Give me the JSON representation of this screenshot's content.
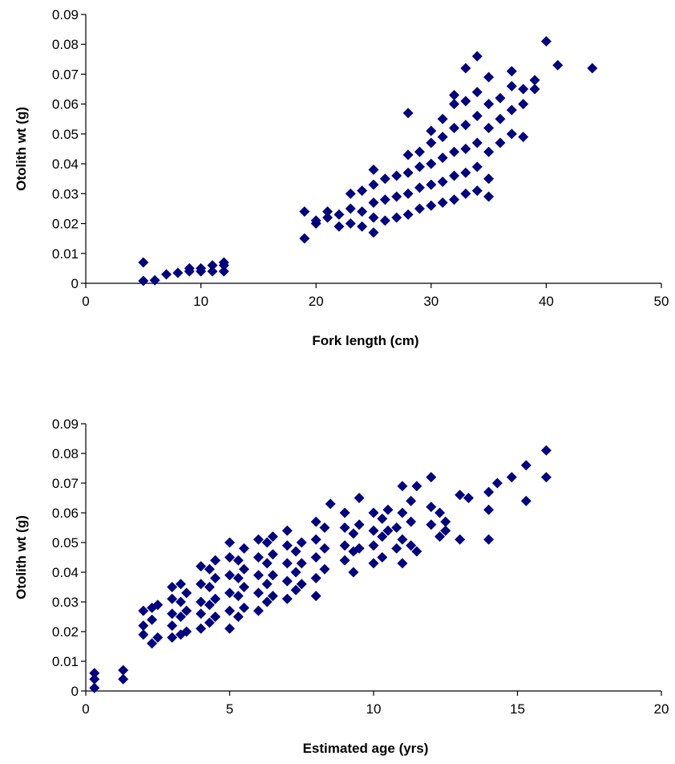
{
  "chart_data": [
    {
      "type": "scatter",
      "xlabel": "Fork length (cm)",
      "ylabel": "Otolith wt (g)",
      "xlim": [
        0,
        50
      ],
      "ylim": [
        0,
        0.09
      ],
      "xticks": [
        "0",
        "10",
        "20",
        "30",
        "40",
        "50"
      ],
      "yticks": [
        "0",
        "0.01",
        "0.02",
        "0.03",
        "0.04",
        "0.05",
        "0.06",
        "0.07",
        "0.08",
        "0.09"
      ],
      "grid": false,
      "legend": "none",
      "marker_color": "#000080",
      "points": [
        [
          5,
          0.0008
        ],
        [
          5,
          0.007
        ],
        [
          6,
          0.001
        ],
        [
          7,
          0.003
        ],
        [
          8,
          0.0035
        ],
        [
          9,
          0.004
        ],
        [
          9,
          0.005
        ],
        [
          10,
          0.004
        ],
        [
          10,
          0.005
        ],
        [
          11,
          0.004
        ],
        [
          11,
          0.006
        ],
        [
          12,
          0.004
        ],
        [
          12,
          0.006
        ],
        [
          12,
          0.007
        ],
        [
          19,
          0.015
        ],
        [
          19,
          0.024
        ],
        [
          20,
          0.02
        ],
        [
          20,
          0.021
        ],
        [
          21,
          0.022
        ],
        [
          21,
          0.024
        ],
        [
          22,
          0.019
        ],
        [
          22,
          0.023
        ],
        [
          23,
          0.02
        ],
        [
          23,
          0.025
        ],
        [
          23,
          0.03
        ],
        [
          24,
          0.019
        ],
        [
          24,
          0.024
        ],
        [
          24,
          0.031
        ],
        [
          25,
          0.017
        ],
        [
          25,
          0.022
        ],
        [
          25,
          0.027
        ],
        [
          25,
          0.033
        ],
        [
          25,
          0.038
        ],
        [
          26,
          0.021
        ],
        [
          26,
          0.028
        ],
        [
          26,
          0.035
        ],
        [
          27,
          0.022
        ],
        [
          27,
          0.029
        ],
        [
          27,
          0.036
        ],
        [
          28,
          0.023
        ],
        [
          28,
          0.03
        ],
        [
          28,
          0.037
        ],
        [
          28,
          0.043
        ],
        [
          28,
          0.057
        ],
        [
          29,
          0.025
        ],
        [
          29,
          0.032
        ],
        [
          29,
          0.039
        ],
        [
          29,
          0.044
        ],
        [
          30,
          0.026
        ],
        [
          30,
          0.033
        ],
        [
          30,
          0.04
        ],
        [
          30,
          0.047
        ],
        [
          30,
          0.051
        ],
        [
          31,
          0.027
        ],
        [
          31,
          0.034
        ],
        [
          31,
          0.042
        ],
        [
          31,
          0.049
        ],
        [
          31,
          0.055
        ],
        [
          32,
          0.028
        ],
        [
          32,
          0.036
        ],
        [
          32,
          0.044
        ],
        [
          32,
          0.052
        ],
        [
          32,
          0.06
        ],
        [
          32,
          0.063
        ],
        [
          33,
          0.03
        ],
        [
          33,
          0.037
        ],
        [
          33,
          0.045
        ],
        [
          33,
          0.053
        ],
        [
          33,
          0.061
        ],
        [
          33,
          0.072
        ],
        [
          34,
          0.031
        ],
        [
          34,
          0.039
        ],
        [
          34,
          0.047
        ],
        [
          34,
          0.056
        ],
        [
          34,
          0.064
        ],
        [
          34,
          0.076
        ],
        [
          35,
          0.029
        ],
        [
          35,
          0.035
        ],
        [
          35,
          0.044
        ],
        [
          35,
          0.052
        ],
        [
          35,
          0.06
        ],
        [
          35,
          0.069
        ],
        [
          36,
          0.047
        ],
        [
          36,
          0.055
        ],
        [
          36,
          0.062
        ],
        [
          37,
          0.05
        ],
        [
          37,
          0.058
        ],
        [
          37,
          0.066
        ],
        [
          37,
          0.071
        ],
        [
          38,
          0.049
        ],
        [
          38,
          0.06
        ],
        [
          38,
          0.065
        ],
        [
          39,
          0.065
        ],
        [
          39,
          0.068
        ],
        [
          40,
          0.081
        ],
        [
          41,
          0.073
        ],
        [
          44,
          0.072
        ]
      ]
    },
    {
      "type": "scatter",
      "xlabel": "Estimated age (yrs)",
      "ylabel": "Otolith wt (g)",
      "xlim": [
        0,
        20
      ],
      "ylim": [
        0,
        0.09
      ],
      "xticks": [
        "0",
        "5",
        "10",
        "15",
        "20"
      ],
      "yticks": [
        "0",
        "0.01",
        "0.02",
        "0.03",
        "0.04",
        "0.05",
        "0.06",
        "0.07",
        "0.08",
        "0.09"
      ],
      "grid": false,
      "legend": "none",
      "marker_color": "#000080",
      "points": [
        [
          0.3,
          0.001
        ],
        [
          0.3,
          0.004
        ],
        [
          0.3,
          0.006
        ],
        [
          1.3,
          0.004
        ],
        [
          1.3,
          0.007
        ],
        [
          2,
          0.019
        ],
        [
          2,
          0.022
        ],
        [
          2,
          0.027
        ],
        [
          2.3,
          0.016
        ],
        [
          2.3,
          0.024
        ],
        [
          2.3,
          0.028
        ],
        [
          2.5,
          0.018
        ],
        [
          2.5,
          0.029
        ],
        [
          3,
          0.018
        ],
        [
          3,
          0.022
        ],
        [
          3,
          0.026
        ],
        [
          3,
          0.031
        ],
        [
          3,
          0.035
        ],
        [
          3.3,
          0.019
        ],
        [
          3.3,
          0.025
        ],
        [
          3.3,
          0.03
        ],
        [
          3.3,
          0.036
        ],
        [
          3.5,
          0.02
        ],
        [
          3.5,
          0.027
        ],
        [
          3.5,
          0.033
        ],
        [
          4,
          0.021
        ],
        [
          4,
          0.026
        ],
        [
          4,
          0.03
        ],
        [
          4,
          0.036
        ],
        [
          4,
          0.042
        ],
        [
          4.3,
          0.023
        ],
        [
          4.3,
          0.029
        ],
        [
          4.3,
          0.035
        ],
        [
          4.3,
          0.041
        ],
        [
          4.5,
          0.025
        ],
        [
          4.5,
          0.031
        ],
        [
          4.5,
          0.038
        ],
        [
          4.5,
          0.044
        ],
        [
          5,
          0.021
        ],
        [
          5,
          0.027
        ],
        [
          5,
          0.033
        ],
        [
          5,
          0.039
        ],
        [
          5,
          0.045
        ],
        [
          5,
          0.05
        ],
        [
          5.3,
          0.025
        ],
        [
          5.3,
          0.032
        ],
        [
          5.3,
          0.038
        ],
        [
          5.3,
          0.044
        ],
        [
          5.5,
          0.028
        ],
        [
          5.5,
          0.035
        ],
        [
          5.5,
          0.041
        ],
        [
          5.5,
          0.048
        ],
        [
          6,
          0.027
        ],
        [
          6,
          0.033
        ],
        [
          6,
          0.039
        ],
        [
          6,
          0.045
        ],
        [
          6,
          0.051
        ],
        [
          6.3,
          0.03
        ],
        [
          6.3,
          0.036
        ],
        [
          6.3,
          0.043
        ],
        [
          6.3,
          0.05
        ],
        [
          6.5,
          0.032
        ],
        [
          6.5,
          0.039
        ],
        [
          6.5,
          0.046
        ],
        [
          6.5,
          0.052
        ],
        [
          7,
          0.031
        ],
        [
          7,
          0.037
        ],
        [
          7,
          0.043
        ],
        [
          7,
          0.049
        ],
        [
          7,
          0.054
        ],
        [
          7.3,
          0.034
        ],
        [
          7.3,
          0.04
        ],
        [
          7.3,
          0.047
        ],
        [
          7.5,
          0.036
        ],
        [
          7.5,
          0.043
        ],
        [
          7.5,
          0.05
        ],
        [
          8,
          0.032
        ],
        [
          8,
          0.038
        ],
        [
          8,
          0.045
        ],
        [
          8,
          0.051
        ],
        [
          8,
          0.057
        ],
        [
          8.3,
          0.041
        ],
        [
          8.3,
          0.048
        ],
        [
          8.3,
          0.055
        ],
        [
          8.5,
          0.063
        ],
        [
          9,
          0.044
        ],
        [
          9,
          0.049
        ],
        [
          9,
          0.055
        ],
        [
          9,
          0.06
        ],
        [
          9.3,
          0.04
        ],
        [
          9.3,
          0.047
        ],
        [
          9.3,
          0.053
        ],
        [
          9.5,
          0.048
        ],
        [
          9.5,
          0.056
        ],
        [
          9.5,
          0.065
        ],
        [
          10,
          0.043
        ],
        [
          10,
          0.049
        ],
        [
          10,
          0.054
        ],
        [
          10,
          0.06
        ],
        [
          10.3,
          0.045
        ],
        [
          10.3,
          0.052
        ],
        [
          10.3,
          0.058
        ],
        [
          10.5,
          0.054
        ],
        [
          10.5,
          0.061
        ],
        [
          10.8,
          0.048
        ],
        [
          10.8,
          0.055
        ],
        [
          11,
          0.043
        ],
        [
          11,
          0.051
        ],
        [
          11,
          0.06
        ],
        [
          11,
          0.069
        ],
        [
          11.3,
          0.049
        ],
        [
          11.3,
          0.057
        ],
        [
          11.3,
          0.064
        ],
        [
          11.5,
          0.047
        ],
        [
          11.5,
          0.069
        ],
        [
          12,
          0.056
        ],
        [
          12,
          0.062
        ],
        [
          12,
          0.072
        ],
        [
          12.3,
          0.052
        ],
        [
          12.3,
          0.06
        ],
        [
          12.5,
          0.054
        ],
        [
          12.5,
          0.057
        ],
        [
          13,
          0.051
        ],
        [
          13,
          0.066
        ],
        [
          13.3,
          0.065
        ],
        [
          14,
          0.051
        ],
        [
          14,
          0.061
        ],
        [
          14,
          0.067
        ],
        [
          14.3,
          0.07
        ],
        [
          14.8,
          0.072
        ],
        [
          15.3,
          0.064
        ],
        [
          15.3,
          0.076
        ],
        [
          16,
          0.072
        ],
        [
          16,
          0.081
        ]
      ]
    }
  ]
}
